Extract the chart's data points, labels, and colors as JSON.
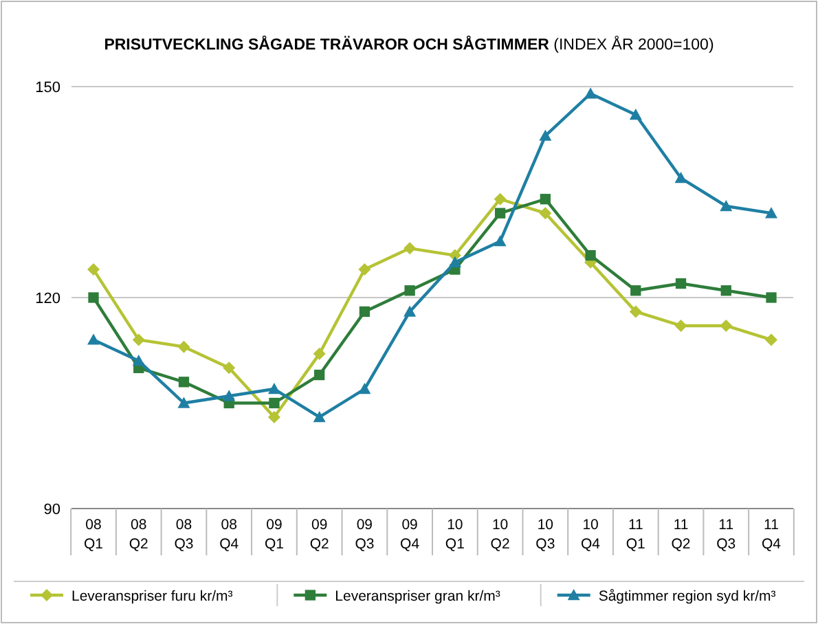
{
  "chart_data": {
    "type": "line",
    "title": "PRISUTVECKLING SÅGADE TRÄVAROR OCH SÅGTIMMER",
    "subtitle": "(INDEX ÅR 2000=100)",
    "categories": [
      "08\nQ1",
      "08\nQ2",
      "08\nQ3",
      "08\nQ4",
      "09\nQ1",
      "09\nQ2",
      "09\nQ3",
      "09\nQ4",
      "10\nQ1",
      "10\nQ2",
      "10\nQ3",
      "10\nQ4",
      "11\nQ1",
      "11\nQ2",
      "11\nQ3",
      "11\nQ4"
    ],
    "series": [
      {
        "name": "Leveranspriser furu kr/m³",
        "color": "#b5c334",
        "marker": "diamond",
        "values": [
          124,
          114,
          113,
          110,
          103,
          112,
          124,
          127,
          126,
          134,
          132,
          125,
          118,
          116,
          116,
          114
        ]
      },
      {
        "name": "Leveranspriser gran kr/m³",
        "color": "#2e7d3a",
        "marker": "square",
        "values": [
          120,
          110,
          108,
          105,
          105,
          109,
          118,
          121,
          124,
          132,
          134,
          126,
          121,
          122,
          121,
          120
        ]
      },
      {
        "name": "Sågtimmer region syd kr/m³",
        "color": "#1f7fa3",
        "marker": "triangle",
        "values": [
          114,
          111,
          105,
          106,
          107,
          103,
          107,
          118,
          125,
          128,
          143,
          149,
          146,
          137,
          133,
          132
        ]
      }
    ],
    "ylim": [
      90,
      150
    ],
    "yticks": [
      90,
      120,
      150
    ],
    "grid": "y",
    "legend": "bottom",
    "line_style": "solid"
  }
}
